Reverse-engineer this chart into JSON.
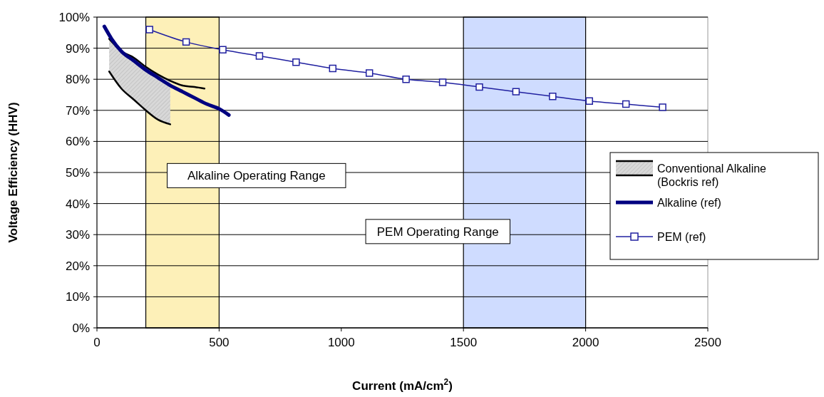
{
  "chart_data": {
    "type": "line",
    "xlabel": "Current (mA/cm$^{2}$)",
    "ylabel": "Voltage Efficiency (HHV)",
    "xlim": [
      0,
      2500
    ],
    "xticks": [
      0,
      500,
      1000,
      1500,
      2000,
      2500
    ],
    "ylim": [
      0,
      100
    ],
    "yticks": [
      {
        "value": 0,
        "label": "0%"
      },
      {
        "value": 10,
        "label": "10%"
      },
      {
        "value": 20,
        "label": "20%"
      },
      {
        "value": 30,
        "label": "30%"
      },
      {
        "value": 40,
        "label": "40%"
      },
      {
        "value": 50,
        "label": "50%"
      },
      {
        "value": 60,
        "label": "60%"
      },
      {
        "value": 70,
        "label": "70%"
      },
      {
        "value": 80,
        "label": "80%"
      },
      {
        "value": 90,
        "label": "90%"
      },
      {
        "value": 100,
        "label": "100%"
      }
    ],
    "grid": "y",
    "legend": "right",
    "bands": [
      {
        "axis": "x",
        "from": 200,
        "to": 500,
        "label": "Alkaline Operating Range",
        "color": "#fdf0b8"
      },
      {
        "axis": "x",
        "from": 1500,
        "to": 2000,
        "label": "PEM Operating Range",
        "color": "#cfdcff"
      }
    ],
    "series": [
      {
        "name": "Conventional Alkaline (Bockris ref)",
        "color": "#000000",
        "x": [
          50,
          100,
          150,
          200,
          250,
          300,
          350,
          400,
          440
        ],
        "values": [
          93,
          89,
          87,
          84,
          81.5,
          79.5,
          78,
          77.5,
          77
        ]
      },
      {
        "color": "#000000",
        "x": [
          50,
          100,
          150,
          200,
          250,
          300
        ],
        "values": [
          82.5,
          77,
          73.5,
          70,
          67,
          65.5
        ]
      },
      {
        "name": "Alkaline (ref)",
        "color": "#000080",
        "x": [
          30,
          60,
          100,
          150,
          200,
          250,
          300,
          350,
          400,
          450,
          500,
          540
        ],
        "values": [
          97,
          93,
          89,
          86,
          83,
          80.5,
          78,
          76,
          74,
          72,
          70.5,
          68.5
        ]
      },
      {
        "name": "PEM (ref)",
        "color": "#2020a0",
        "marker": "square",
        "x": [
          215,
          365,
          515,
          665,
          815,
          965,
          1115,
          1265,
          1415,
          1565,
          1715,
          1865,
          2015,
          2165,
          2315
        ],
        "values": [
          96,
          92,
          89.5,
          87.5,
          85.5,
          83.5,
          82,
          80,
          79,
          77.5,
          76,
          74.5,
          73,
          72,
          71
        ]
      }
    ]
  }
}
